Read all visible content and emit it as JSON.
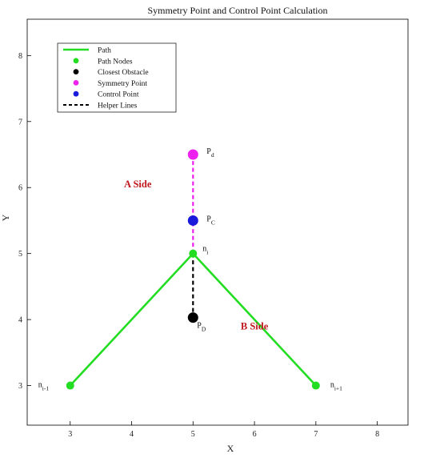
{
  "chart_data": {
    "type": "scatter",
    "title": "Symmetry Point and Control Point Calculation",
    "xlabel": "X",
    "ylabel": "Y",
    "xlim": [
      2.3,
      8.5
    ],
    "ylim": [
      2.4,
      8.55
    ],
    "xticks": [
      3,
      4,
      5,
      6,
      7,
      8
    ],
    "yticks": [
      3,
      4,
      5,
      6,
      7,
      8
    ],
    "xtick_labels": [
      "3",
      "4",
      "5",
      "6",
      "7",
      "8"
    ],
    "ytick_labels": [
      "3",
      "4",
      "5",
      "6",
      "7",
      "8"
    ],
    "grid": false,
    "legend_position": "top-left",
    "colors": {
      "path": "#22dd22",
      "nodes": "#22dd22",
      "obstacle": "#000000",
      "symmetry": "#ee22ee",
      "control": "#1a1adb",
      "side_text": "#c0181c"
    },
    "legend": [
      {
        "label": "Path",
        "marker": "line",
        "color": "#22dd22"
      },
      {
        "label": "Path Nodes",
        "marker": "dot",
        "color": "#22dd22"
      },
      {
        "label": "Closest Obstacle",
        "marker": "dot",
        "color": "#000000"
      },
      {
        "label": "Symmetry Point",
        "marker": "dot",
        "color": "#ee22ee"
      },
      {
        "label": "Control Point",
        "marker": "dot",
        "color": "#1a1adb"
      },
      {
        "label": "Helper Lines",
        "marker": "dash",
        "color": "#000000"
      }
    ],
    "series": [
      {
        "name": "Path",
        "kind": "line",
        "x": [
          3,
          5,
          7
        ],
        "y": [
          3,
          5,
          3
        ]
      },
      {
        "name": "Path Nodes",
        "kind": "points",
        "x": [
          3,
          5,
          7
        ],
        "y": [
          3,
          5,
          3
        ]
      },
      {
        "name": "Closest Obstacle",
        "kind": "points",
        "x": [
          5
        ],
        "y": [
          4.03
        ]
      },
      {
        "name": "Symmetry Point",
        "kind": "points",
        "x": [
          5
        ],
        "y": [
          6.5
        ]
      },
      {
        "name": "Control Point",
        "kind": "points",
        "x": [
          5
        ],
        "y": [
          5.5
        ]
      }
    ],
    "helper_lines": [
      {
        "from": [
          5,
          5
        ],
        "to": [
          5,
          4.03
        ],
        "color": "#000000"
      },
      {
        "from": [
          5,
          5
        ],
        "to": [
          5,
          6.5
        ],
        "color": "#ee22ee"
      }
    ],
    "point_labels": [
      {
        "base": "n",
        "sub": "i-1",
        "x": 3,
        "y": 3
      },
      {
        "base": "n",
        "sub": "i",
        "x": 5,
        "y": 5
      },
      {
        "base": "n",
        "sub": "i+1",
        "x": 7,
        "y": 3
      },
      {
        "base": "P",
        "sub": "D",
        "x": 5,
        "y": 4.03
      },
      {
        "base": "P",
        "sub": "C",
        "x": 5,
        "y": 5.5
      },
      {
        "base": "P",
        "sub": "d",
        "x": 5,
        "y": 6.5
      }
    ],
    "annotations": [
      {
        "text": "A Side",
        "x": 4.1,
        "y": 6.0
      },
      {
        "text": "B Side",
        "x": 6.0,
        "y": 3.85
      }
    ]
  }
}
